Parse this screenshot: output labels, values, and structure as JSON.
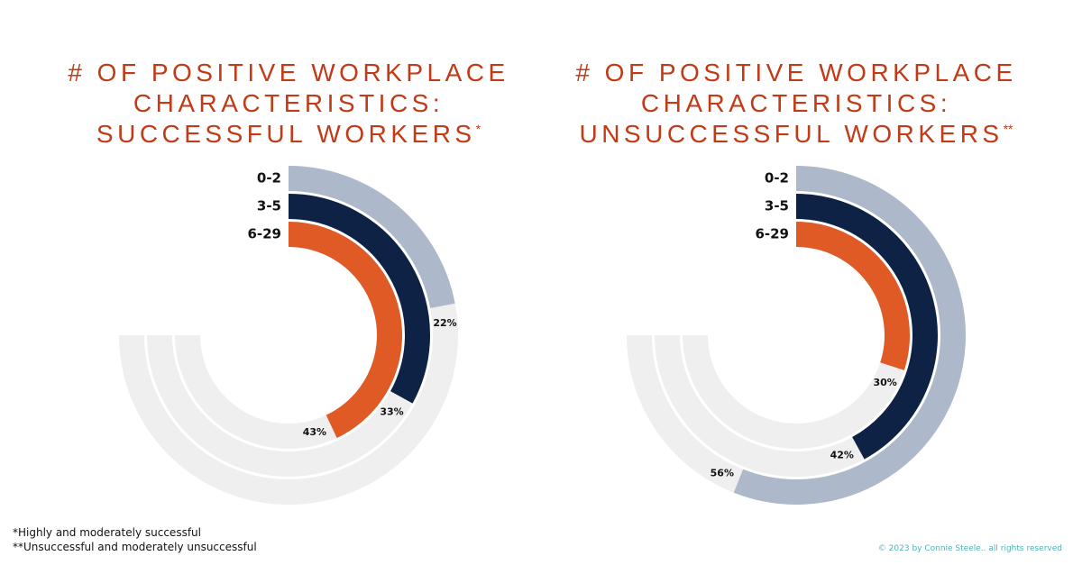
{
  "chart_data": [
    {
      "type": "radial_bar",
      "title": [
        "# OF POSITIVE WORKPLACE",
        "CHARACTERISTICS:",
        "SUCCESSFUL WORKERS"
      ],
      "title_note": "*",
      "categories": [
        "0-2",
        "3-5",
        "6-29"
      ],
      "colors": [
        "#aeb8cb",
        "#0d2244",
        "#e05a26"
      ],
      "values": [
        22,
        33,
        43
      ],
      "value_labels": [
        "22%",
        "33%",
        "43%"
      ],
      "lim": [
        0,
        100
      ]
    },
    {
      "type": "radial_bar",
      "title": [
        "# OF POSITIVE WORKPLACE",
        "CHARACTERISTICS:",
        "UNSUCCESSFUL WORKERS"
      ],
      "title_note": "**",
      "categories": [
        "0-2",
        "3-5",
        "6-29"
      ],
      "colors": [
        "#aeb8cb",
        "#0d2244",
        "#e05a26"
      ],
      "values": [
        56,
        42,
        30
      ],
      "value_labels": [
        "56%",
        "42%",
        "30%"
      ],
      "lim": [
        0,
        100
      ]
    }
  ],
  "footnotes": [
    "*Highly and moderately successful",
    "**Unsuccessful and moderately unsuccessful"
  ],
  "copyright": "© 2023 by Connie Steele.. all rights reserved"
}
